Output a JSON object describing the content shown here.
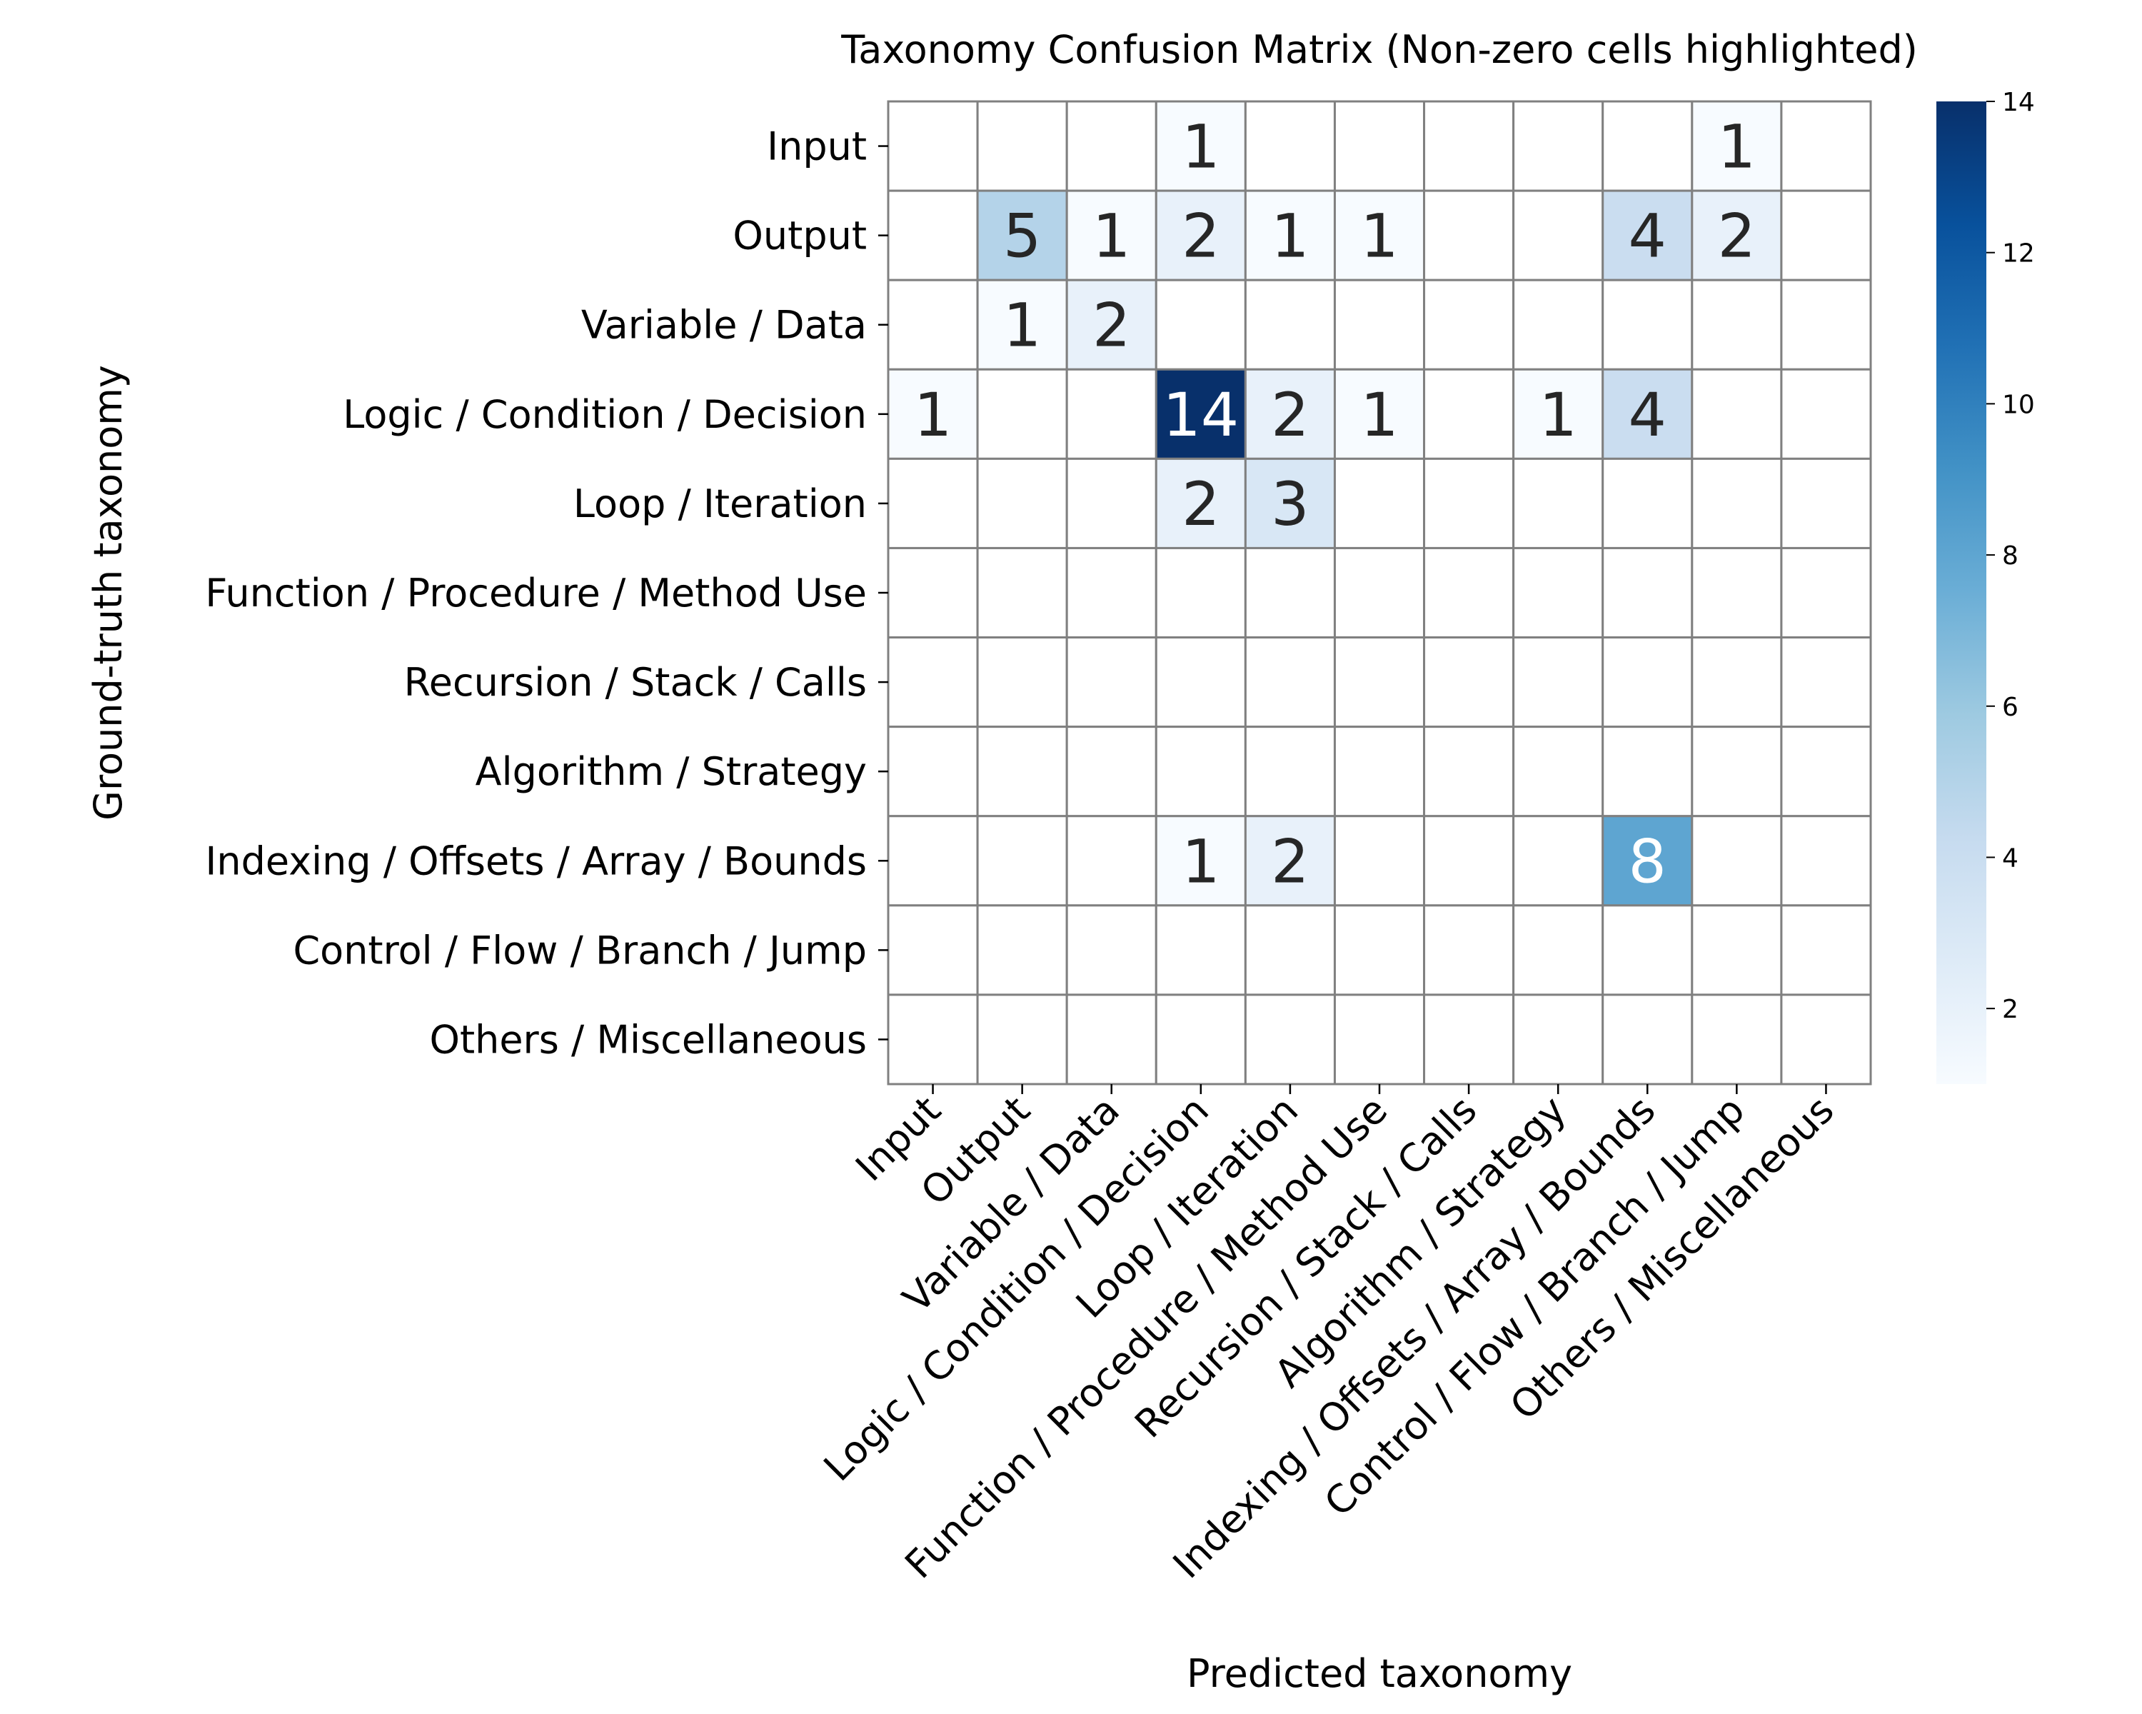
{
  "chart_data": {
    "type": "heatmap",
    "title": "Taxonomy Confusion Matrix (Non-zero cells highlighted)",
    "xlabel": "Predicted taxonomy",
    "ylabel": "Ground-truth taxonomy",
    "categories": [
      "Input",
      "Output",
      "Variable / Data",
      "Logic / Condition / Decision",
      "Loop / Iteration",
      "Function / Procedure / Method Use",
      "Recursion / Stack / Calls",
      "Algorithm / Strategy",
      "Indexing / Offsets / Array / Bounds",
      "Control / Flow / Branch / Jump",
      "Others / Miscellaneous"
    ],
    "matrix": [
      [
        0,
        0,
        0,
        1,
        0,
        0,
        0,
        0,
        0,
        1,
        0
      ],
      [
        0,
        5,
        1,
        2,
        1,
        1,
        0,
        0,
        4,
        2,
        0
      ],
      [
        0,
        1,
        2,
        0,
        0,
        0,
        0,
        0,
        0,
        0,
        0
      ],
      [
        1,
        0,
        0,
        14,
        2,
        1,
        0,
        1,
        4,
        0,
        0
      ],
      [
        0,
        0,
        0,
        2,
        3,
        0,
        0,
        0,
        0,
        0,
        0
      ],
      [
        0,
        0,
        0,
        0,
        0,
        0,
        0,
        0,
        0,
        0,
        0
      ],
      [
        0,
        0,
        0,
        0,
        0,
        0,
        0,
        0,
        0,
        0,
        0
      ],
      [
        0,
        0,
        0,
        0,
        0,
        0,
        0,
        0,
        0,
        0,
        0
      ],
      [
        0,
        0,
        0,
        1,
        2,
        0,
        0,
        0,
        8,
        0,
        0
      ],
      [
        0,
        0,
        0,
        0,
        0,
        0,
        0,
        0,
        0,
        0,
        0
      ],
      [
        0,
        0,
        0,
        0,
        0,
        0,
        0,
        0,
        0,
        0,
        0
      ]
    ],
    "colorbar": {
      "range": [
        1,
        14
      ],
      "ticks": [
        2,
        4,
        6,
        8,
        10,
        12,
        14
      ],
      "colormap": "Blues"
    },
    "zero_cells": "blank",
    "cell_border_color": "#808080",
    "legend": "colorbar-right"
  }
}
